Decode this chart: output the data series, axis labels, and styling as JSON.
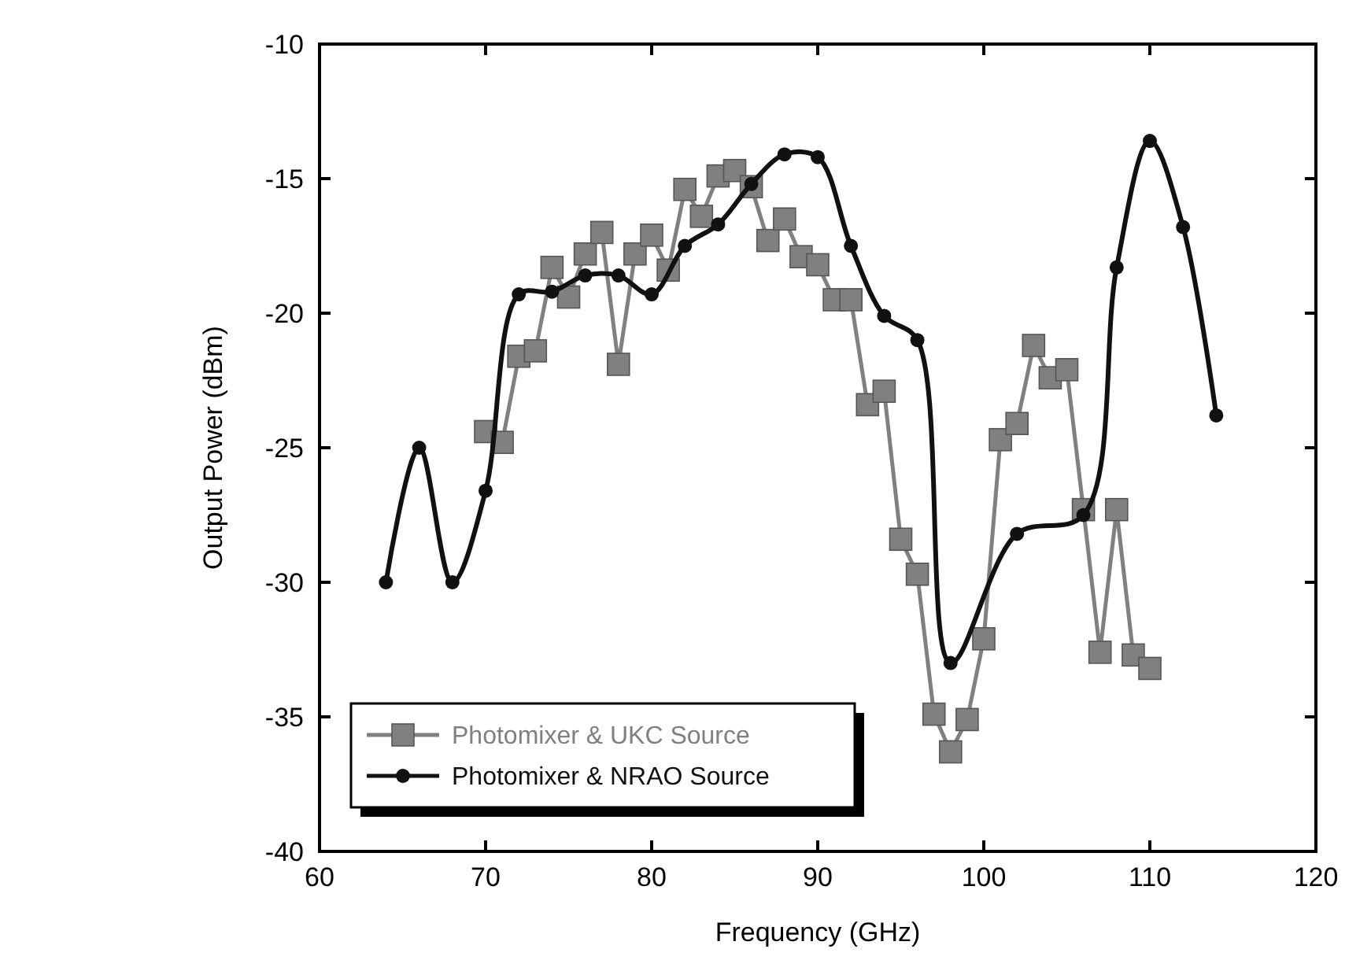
{
  "chart_data": {
    "type": "line",
    "xlabel": "Frequency (GHz)",
    "ylabel": "Output Power (dBm)",
    "xlim": [
      60,
      120
    ],
    "xticks": [
      60,
      70,
      80,
      90,
      100,
      110,
      120
    ],
    "ylim": [
      -40,
      -10
    ],
    "yticks": [
      -40,
      -35,
      -30,
      -25,
      -20,
      -15,
      -10
    ],
    "grid": false,
    "legend": "bottom left",
    "series": [
      {
        "name": "Photomixer & UKC Source",
        "color": "#808080",
        "marker": "square",
        "x": [
          70,
          71,
          72,
          73,
          74,
          75,
          76,
          77,
          78,
          79,
          80,
          81,
          82,
          83,
          84,
          85,
          86,
          87,
          88,
          89,
          90,
          91,
          92,
          93,
          94,
          95,
          96,
          97,
          98,
          99,
          100,
          101,
          102,
          103,
          104,
          105,
          106,
          107,
          108,
          109,
          110
        ],
        "values": [
          -24.4,
          -24.8,
          -21.6,
          -21.4,
          -18.3,
          -19.4,
          -17.8,
          -17,
          -21.9,
          -17.8,
          -17.1,
          -18.4,
          -15.4,
          -16.4,
          -14.9,
          -14.7,
          -15.3,
          -17.3,
          -16.5,
          -17.9,
          -18.2,
          -19.5,
          -19.5,
          -23.4,
          -22.9,
          -28.4,
          -29.7,
          -34.9,
          -36.3,
          -35.1,
          -32.1,
          -24.7,
          -24.1,
          -21.2,
          -22.4,
          -22.1,
          -27.3,
          -32.6,
          -27.3,
          -32.7,
          -33.2
        ]
      },
      {
        "name": "Photomixer & NRAO Source",
        "color": "#111111",
        "marker": "circle",
        "x": [
          64,
          66,
          68,
          70,
          72,
          74,
          76,
          78,
          80,
          82,
          84,
          86,
          88,
          90,
          92,
          94,
          96,
          98,
          102,
          106,
          108,
          110,
          112,
          114
        ],
        "values": [
          -30,
          -25,
          -30,
          -26.6,
          -19.3,
          -19.2,
          -18.6,
          -18.6,
          -19.3,
          -17.5,
          -16.7,
          -15.2,
          -14.1,
          -14.2,
          -17.5,
          -20.1,
          -21,
          -33,
          -28.2,
          -27.5,
          -18.3,
          -13.6,
          -16.8,
          -23.8
        ]
      }
    ]
  }
}
